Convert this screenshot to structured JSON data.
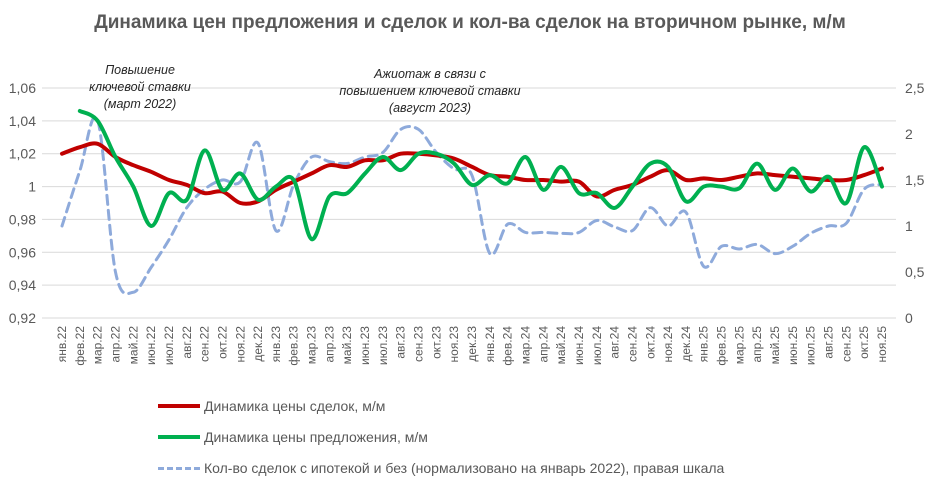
{
  "chart_data": {
    "type": "line",
    "title": "Динамика цен предложения и сделок и кол-ва сделок на вторичном рынке, м/м",
    "categories": [
      "янв.22",
      "фев.22",
      "мар.22",
      "апр.22",
      "май.22",
      "июн.22",
      "июл.22",
      "авг.22",
      "сен.22",
      "окт.22",
      "ноя.22",
      "дек.22",
      "янв.23",
      "фев.23",
      "мар.23",
      "апр.23",
      "май.23",
      "июн.23",
      "июл.23",
      "авг.23",
      "сен.23",
      "окт.23",
      "ноя.23",
      "дек.23",
      "янв.24",
      "фев.24",
      "мар.24",
      "апр.24",
      "май.24",
      "июн.24",
      "июл.24",
      "авг.24",
      "сен.24",
      "окт.24",
      "ноя.24",
      "дек.24",
      "янв.25",
      "фев.25",
      "мар.25",
      "апр.25",
      "май.25",
      "июн.25",
      "июл.25",
      "авг.25",
      "сен.25",
      "окт.25",
      "ноя.25"
    ],
    "y_left": {
      "range": [
        0.92,
        1.06
      ],
      "ticks": [
        "0,92",
        "0,94",
        "0,96",
        "0,98",
        "1",
        "1,02",
        "1,04",
        "1,06"
      ]
    },
    "y_right": {
      "range": [
        0,
        2.5
      ],
      "ticks": [
        "0",
        "0,5",
        "1",
        "1,5",
        "2",
        "2,5"
      ]
    },
    "grid": true,
    "legend_placement": "bottom",
    "series": [
      {
        "name": "Динамика цены сделок, м/м",
        "axis": "left",
        "color": "#c00000",
        "style": "solid",
        "values": [
          1.02,
          1.024,
          1.026,
          1.018,
          1.013,
          1.009,
          1.004,
          1.001,
          0.996,
          0.997,
          0.99,
          0.991,
          0.998,
          1.003,
          1.008,
          1.013,
          1.012,
          1.016,
          1.016,
          1.02,
          1.02,
          1.019,
          1.017,
          1.012,
          1.007,
          1.006,
          1.004,
          1.004,
          1.003,
          1.003,
          0.994,
          0.998,
          1.001,
          1.006,
          1.01,
          1.004,
          1.005,
          1.004,
          1.006,
          1.008,
          1.007,
          1.006,
          1.005,
          1.004,
          1.004,
          1.007,
          1.011
        ]
      },
      {
        "name": "Динамика цены предложения, м/м",
        "axis": "left",
        "color": "#00b050",
        "style": "solid",
        "values": [
          null,
          1.046,
          1.04,
          1.018,
          1.0,
          0.976,
          0.996,
          0.992,
          1.022,
          0.998,
          1.008,
          0.992,
          1.0,
          1.004,
          0.968,
          0.994,
          0.996,
          1.008,
          1.018,
          1.01,
          1.02,
          1.02,
          1.014,
          1.001,
          1.007,
          1.002,
          1.018,
          0.998,
          1.012,
          0.996,
          0.996,
          0.987,
          1.0,
          1.014,
          1.012,
          0.991,
          1.0,
          1.0,
          0.999,
          1.014,
          0.998,
          1.011,
          0.997,
          1.006,
          0.99,
          1.024,
          1.0
        ]
      },
      {
        "name": "Кол-во сделок с ипотекой и без (нормализовано на январь 2022),  правая шкала",
        "axis": "right",
        "color": "#8eaadb",
        "style": "dashed",
        "values": [
          1.0,
          1.6,
          2.15,
          0.5,
          0.28,
          0.55,
          0.85,
          1.2,
          1.4,
          1.5,
          1.48,
          1.9,
          0.95,
          1.45,
          1.75,
          1.7,
          1.68,
          1.75,
          1.8,
          2.05,
          2.05,
          1.8,
          1.62,
          1.55,
          0.7,
          1.02,
          0.93,
          0.93,
          0.92,
          0.93,
          1.06,
          0.99,
          0.95,
          1.2,
          1.0,
          1.15,
          0.56,
          0.78,
          0.75,
          0.8,
          0.7,
          0.78,
          0.92,
          1.0,
          1.03,
          1.4,
          1.45
        ]
      }
    ],
    "annotations": [
      {
        "text": [
          "Повышение",
          "ключевой ставки",
          "(март 2022)"
        ],
        "at": "мар.22"
      },
      {
        "text": [
          "Ажиотаж в связи с",
          "повышением ключевой ставки",
          "(август 2023)"
        ],
        "at": "авг.23"
      }
    ]
  }
}
